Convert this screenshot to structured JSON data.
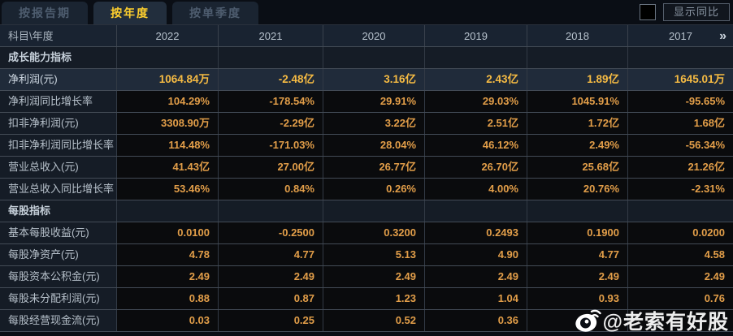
{
  "tabs": {
    "items": [
      {
        "label": "按报告期",
        "active": false
      },
      {
        "label": "按年度",
        "active": true
      },
      {
        "label": "按单季度",
        "active": false
      }
    ]
  },
  "toolbar": {
    "show_yoy_label": "显示同比",
    "checkbox_checked": false
  },
  "table": {
    "corner_label": "科目\\年度",
    "more_years_icon": "»",
    "columns": [
      "2022",
      "2021",
      "2020",
      "2019",
      "2018",
      "2017"
    ],
    "rows": [
      {
        "type": "section",
        "label": "成长能力指标",
        "values": [
          "",
          "",
          "",
          "",
          "",
          ""
        ]
      },
      {
        "type": "highlight",
        "label": "净利润(元)",
        "values": [
          "1064.84万",
          "-2.48亿",
          "3.16亿",
          "2.43亿",
          "1.89亿",
          "1645.01万"
        ]
      },
      {
        "type": "data",
        "label": "净利润同比增长率",
        "values": [
          "104.29%",
          "-178.54%",
          "29.91%",
          "29.03%",
          "1045.91%",
          "-95.65%"
        ]
      },
      {
        "type": "data",
        "label": "扣非净利润(元)",
        "values": [
          "3308.90万",
          "-2.29亿",
          "3.22亿",
          "2.51亿",
          "1.72亿",
          "1.68亿"
        ]
      },
      {
        "type": "data",
        "label": "扣非净利润同比增长率",
        "values": [
          "114.48%",
          "-171.03%",
          "28.04%",
          "46.12%",
          "2.49%",
          "-56.34%"
        ]
      },
      {
        "type": "data",
        "label": "营业总收入(元)",
        "values": [
          "41.43亿",
          "27.00亿",
          "26.77亿",
          "26.70亿",
          "25.68亿",
          "21.26亿"
        ]
      },
      {
        "type": "data",
        "label": "营业总收入同比增长率",
        "values": [
          "53.46%",
          "0.84%",
          "0.26%",
          "4.00%",
          "20.76%",
          "-2.31%"
        ]
      },
      {
        "type": "section",
        "label": "每股指标",
        "values": [
          "",
          "",
          "",
          "",
          "",
          ""
        ]
      },
      {
        "type": "data",
        "label": "基本每股收益(元)",
        "values": [
          "0.0100",
          "-0.2500",
          "0.3200",
          "0.2493",
          "0.1900",
          "0.0200"
        ]
      },
      {
        "type": "data",
        "label": "每股净资产(元)",
        "values": [
          "4.78",
          "4.77",
          "5.13",
          "4.90",
          "4.77",
          "4.58"
        ]
      },
      {
        "type": "data",
        "label": "每股资本公积金(元)",
        "values": [
          "2.49",
          "2.49",
          "2.49",
          "2.49",
          "2.49",
          "2.49"
        ]
      },
      {
        "type": "data",
        "label": "每股未分配利润(元)",
        "values": [
          "0.88",
          "0.87",
          "1.23",
          "1.04",
          "0.93",
          "0.76"
        ]
      },
      {
        "type": "data",
        "label": "每股经营现金流(元)",
        "values": [
          "0.03",
          "0.25",
          "0.52",
          "0.36",
          "",
          ""
        ]
      }
    ]
  },
  "watermark": {
    "text": "@老索有好股",
    "icon": "weibo-icon"
  },
  "colors": {
    "value_text": "#e29e49",
    "highlight_value_text": "#f6bb43",
    "active_tab_text": "#ffd02e",
    "row_separator": "#434b56",
    "label_bg": "#151c26",
    "highlight_row_bg": "#202b3a"
  }
}
